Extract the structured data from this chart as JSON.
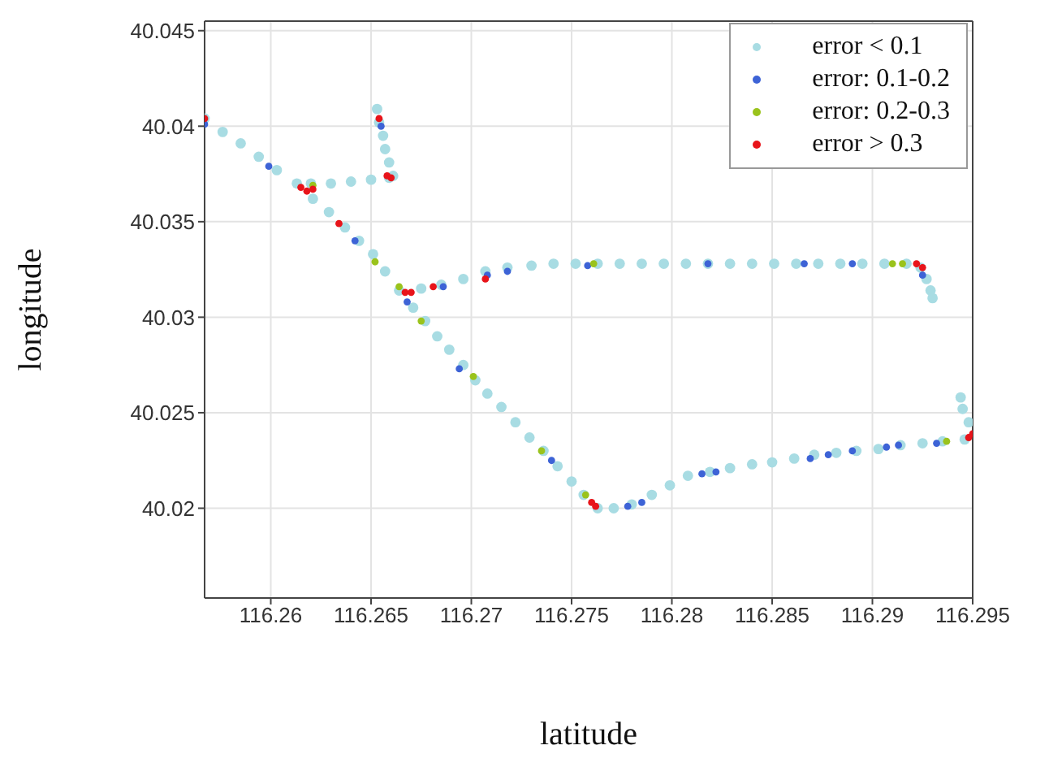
{
  "chart_data": {
    "type": "scatter",
    "xlabel": "latitude",
    "ylabel": "longitude",
    "xlim": [
      116.2567,
      116.295
    ],
    "ylim": [
      40.0153,
      40.0455
    ],
    "xticks": [
      116.26,
      116.265,
      116.27,
      116.275,
      116.28,
      116.285,
      116.29,
      116.295
    ],
    "yticks": [
      40.02,
      40.025,
      40.03,
      40.035,
      40.04,
      40.045
    ],
    "grid": true,
    "legend": "top right",
    "marker": "circle",
    "series": [
      {
        "name": "error < 0.1",
        "color": "#a8dce3",
        "x": [
          116.2567,
          116.2576,
          116.2585,
          116.2594,
          116.2603,
          116.2613,
          116.2621,
          116.2629,
          116.2637,
          116.2644,
          116.2651,
          116.2657,
          116.2664,
          116.2671,
          116.2677,
          116.2683,
          116.2689,
          116.2696,
          116.2702,
          116.2708,
          116.2715,
          116.2722,
          116.2729,
          116.2736,
          116.2743,
          116.275,
          116.2756,
          116.2763,
          116.2771,
          116.278,
          116.279,
          116.2799,
          116.2808,
          116.2819,
          116.2829,
          116.284,
          116.285,
          116.2861,
          116.2871,
          116.2882,
          116.2892,
          116.2903,
          116.2914,
          116.2925,
          116.2935,
          116.2946,
          116.2948,
          116.2945,
          116.2944,
          116.262,
          116.263,
          116.264,
          116.265,
          116.2659,
          116.2661,
          116.2659,
          116.2657,
          116.2656,
          116.2654,
          116.2653,
          116.2675,
          116.2685,
          116.2696,
          116.2707,
          116.2718,
          116.273,
          116.2741,
          116.2752,
          116.2763,
          116.2774,
          116.2785,
          116.2796,
          116.2807,
          116.2818,
          116.2829,
          116.284,
          116.2851,
          116.2862,
          116.2873,
          116.2884,
          116.2895,
          116.2906,
          116.2917,
          116.2924,
          116.2927,
          116.2929,
          116.293
        ],
        "values": [
          40.0404,
          40.0397,
          40.0391,
          40.0384,
          40.0377,
          40.037,
          40.0362,
          40.0355,
          40.0347,
          40.034,
          40.0333,
          40.0324,
          40.0314,
          40.0305,
          40.0298,
          40.029,
          40.0283,
          40.0275,
          40.0267,
          40.026,
          40.0253,
          40.0245,
          40.0237,
          40.023,
          40.0222,
          40.0214,
          40.0207,
          40.02,
          40.02,
          40.0202,
          40.0207,
          40.0212,
          40.0217,
          40.0219,
          40.0221,
          40.0223,
          40.0224,
          40.0226,
          40.0228,
          40.0229,
          40.023,
          40.0231,
          40.0233,
          40.0234,
          40.0235,
          40.0236,
          40.0245,
          40.0252,
          40.0258,
          40.037,
          40.037,
          40.0371,
          40.0372,
          40.0373,
          40.0374,
          40.0381,
          40.0388,
          40.0395,
          40.0402,
          40.0409,
          40.0315,
          40.0317,
          40.032,
          40.0324,
          40.0326,
          40.0327,
          40.0328,
          40.0328,
          40.0328,
          40.0328,
          40.0328,
          40.0328,
          40.0328,
          40.0328,
          40.0328,
          40.0328,
          40.0328,
          40.0328,
          40.0328,
          40.0328,
          40.0328,
          40.0328,
          40.0328,
          40.0326,
          40.032,
          40.0314,
          40.031
        ]
      },
      {
        "name": "error: 0.1-0.2",
        "color": "#3d63d6",
        "x": [
          116.2567,
          116.2599,
          116.2642,
          116.2668,
          116.2694,
          116.274,
          116.2778,
          116.2785,
          116.2815,
          116.2822,
          116.2869,
          116.2878,
          116.289,
          116.2907,
          116.2913,
          116.2932,
          116.2655,
          116.2686,
          116.2708,
          116.2718,
          116.2758,
          116.2818,
          116.2866,
          116.289,
          116.2925
        ],
        "values": [
          40.0401,
          40.0379,
          40.034,
          40.0308,
          40.0273,
          40.0225,
          40.0201,
          40.0203,
          40.0218,
          40.0219,
          40.0226,
          40.0228,
          40.023,
          40.0232,
          40.0233,
          40.0234,
          40.04,
          40.0316,
          40.0322,
          40.0324,
          40.0327,
          40.0328,
          40.0328,
          40.0328,
          40.0322
        ]
      },
      {
        "name": "error: 0.2-0.3",
        "color": "#9ac31c",
        "x": [
          116.2621,
          116.2664,
          116.2675,
          116.2701,
          116.2735,
          116.2757,
          116.2761,
          116.291,
          116.2915,
          116.2937,
          116.2652
        ],
        "values": [
          40.0369,
          40.0316,
          40.0298,
          40.0269,
          40.023,
          40.0207,
          40.0328,
          40.0328,
          40.0328,
          40.0235,
          40.0329
        ]
      },
      {
        "name": "error > 0.3",
        "color": "#e8141a",
        "x": [
          116.2567,
          116.266,
          116.2658,
          116.2654,
          116.2615,
          116.2618,
          116.2621,
          116.2634,
          116.2667,
          116.267,
          116.2681,
          116.2707,
          116.2922,
          116.2925,
          116.2762,
          116.276,
          116.295,
          116.2948
        ],
        "values": [
          40.0404,
          40.0373,
          40.0374,
          40.0404,
          40.0368,
          40.0366,
          40.0367,
          40.0349,
          40.0313,
          40.0313,
          40.0316,
          40.032,
          40.0328,
          40.0326,
          40.0201,
          40.0203,
          40.0239,
          40.0237
        ]
      }
    ]
  }
}
